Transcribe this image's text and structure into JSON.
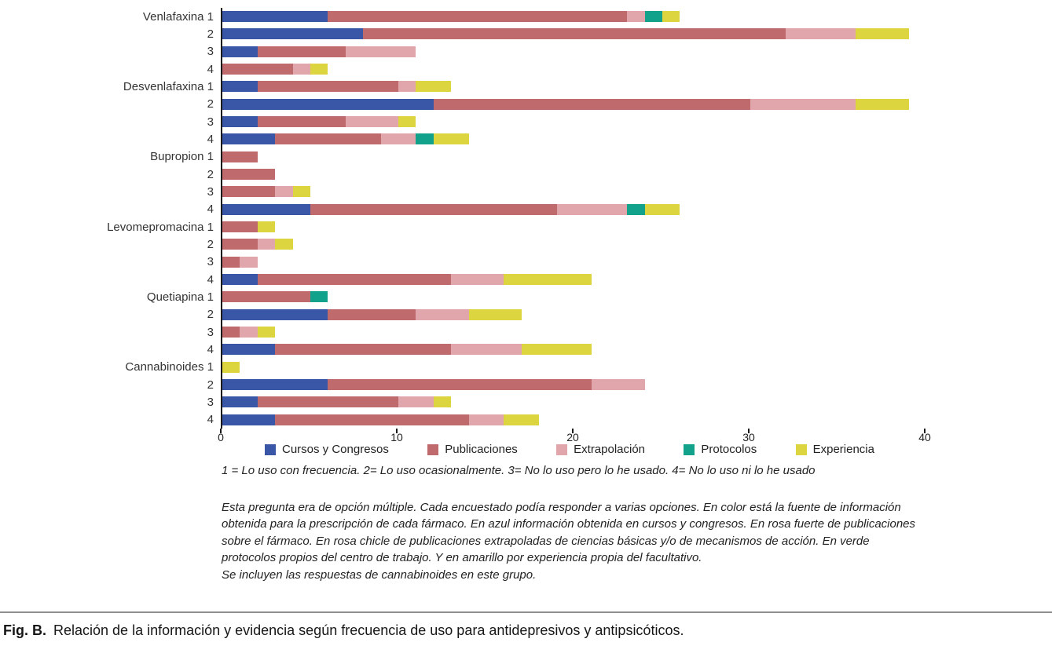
{
  "figure": {
    "caption_label": "Fig. B.",
    "caption_text": "Relación de la información y evidencia según frecuencia de uso para antidepresivos y antipsicóticos."
  },
  "notes": {
    "frequency_key": "1 = Lo uso con frecuencia. 2= Lo uso ocasionalmente. 3= No lo uso pero lo he usado. 4= No lo uso ni lo he usado",
    "explanation": "Esta pregunta era de opción múltiple. Cada encuestado podía responder a varias opciones. En color está la fuente de información obtenida para la prescripción de cada fármaco. En azul información obtenida en cursos y congresos. En rosa fuerte de publicaciones sobre el fármaco. En rosa chicle de publicaciones extrapoladas de ciencias básicas y/o de mecanismos de acción. En verde protocolos propios del centro de trabajo. Y en amarillo por experiencia propia del facultativo.",
    "cannabinoides_note": "Se incluyen las respuestas de cannabinoides en este grupo."
  },
  "chart_data": {
    "type": "bar",
    "stacked": true,
    "orientation": "horizontal",
    "title": "",
    "xlabel": "",
    "ylabel": "",
    "xlim": [
      0,
      40
    ],
    "xticks": [
      0,
      10,
      20,
      30,
      40
    ],
    "grid": false,
    "legend_position": "bottom",
    "series": [
      {
        "name": "Cursos y Congresos",
        "color": "#3a57a7"
      },
      {
        "name": "Publicaciones",
        "color": "#bf6a6d"
      },
      {
        "name": "Extrapolación",
        "color": "#e0a6ab"
      },
      {
        "name": "Protocolos",
        "color": "#12a28b"
      },
      {
        "name": "Experiencia",
        "color": "#ddd53f"
      }
    ],
    "groups": [
      "Venlafaxina",
      "Desvenlafaxina",
      "Bupropion",
      "Levomepromacina",
      "Quetiapina",
      "Cannabinoides"
    ],
    "frequency_levels": [
      "1",
      "2",
      "3",
      "4"
    ],
    "rows": [
      {
        "label": "Venlafaxina 1",
        "values": [
          6,
          17,
          1,
          1,
          1
        ]
      },
      {
        "label": "2",
        "values": [
          8,
          24,
          4,
          0,
          3
        ]
      },
      {
        "label": "3",
        "values": [
          2,
          5,
          4,
          0,
          0
        ]
      },
      {
        "label": "4",
        "values": [
          0,
          4,
          1,
          0,
          1
        ]
      },
      {
        "label": "Desvenlafaxina 1",
        "values": [
          2,
          8,
          1,
          0,
          2
        ]
      },
      {
        "label": "2",
        "values": [
          12,
          18,
          6,
          0,
          3
        ]
      },
      {
        "label": "3",
        "values": [
          2,
          5,
          3,
          0,
          1
        ]
      },
      {
        "label": "4",
        "values": [
          3,
          6,
          2,
          1,
          2
        ]
      },
      {
        "label": "Bupropion 1",
        "values": [
          0,
          2,
          0,
          0,
          0
        ]
      },
      {
        "label": "2",
        "values": [
          0,
          3,
          0,
          0,
          0
        ]
      },
      {
        "label": "3",
        "values": [
          0,
          3,
          1,
          0,
          1
        ]
      },
      {
        "label": "4",
        "values": [
          5,
          14,
          4,
          1,
          2
        ]
      },
      {
        "label": "Levomepromacina 1",
        "values": [
          0,
          2,
          0,
          0,
          1
        ]
      },
      {
        "label": "2",
        "values": [
          0,
          2,
          1,
          0,
          1
        ]
      },
      {
        "label": "3",
        "values": [
          0,
          1,
          1,
          0,
          0
        ]
      },
      {
        "label": "4",
        "values": [
          2,
          11,
          3,
          0,
          5
        ]
      },
      {
        "label": "Quetiapina 1",
        "values": [
          0,
          5,
          0,
          1,
          0
        ]
      },
      {
        "label": "2",
        "values": [
          6,
          5,
          3,
          0,
          3
        ]
      },
      {
        "label": "3",
        "values": [
          0,
          1,
          1,
          0,
          1
        ]
      },
      {
        "label": "4",
        "values": [
          3,
          10,
          4,
          0,
          4
        ]
      },
      {
        "label": "Cannabinoides 1",
        "values": [
          0,
          0,
          0,
          0,
          1
        ]
      },
      {
        "label": "2",
        "values": [
          6,
          15,
          3,
          0,
          0
        ]
      },
      {
        "label": "3",
        "values": [
          2,
          8,
          2,
          0,
          1
        ]
      },
      {
        "label": "4",
        "values": [
          3,
          11,
          2,
          0,
          2
        ]
      }
    ]
  }
}
